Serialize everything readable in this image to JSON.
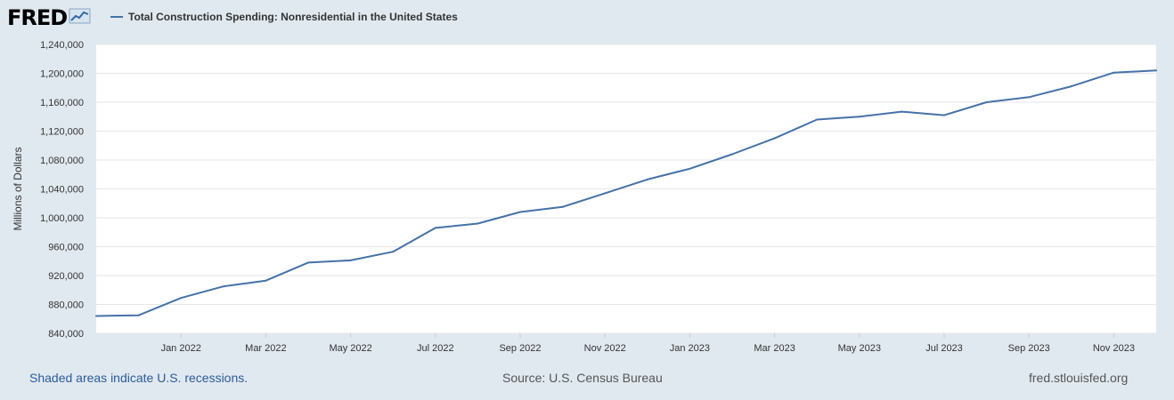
{
  "header": {
    "logo_text": "FRED",
    "logo_icon": "chart-trend-icon",
    "legend_label": "Total Construction Spending: Nonresidential in the United States"
  },
  "colors": {
    "background": "#e1e9f0",
    "plot_background": "#ffffff",
    "series": "#4572a7",
    "gridline": "#e6e6e6",
    "link": "#2a5b9a"
  },
  "footer": {
    "recession_note": "Shaded areas indicate U.S. recessions.",
    "source": "Source: U.S. Census Bureau",
    "site": "fred.stlouisfed.org"
  },
  "chart_data": {
    "type": "line",
    "title": "",
    "ylabel": "Millions of Dollars",
    "xlabel": "",
    "ylim": [
      840000,
      1240000
    ],
    "yticks": [
      840000,
      880000,
      920000,
      960000,
      1000000,
      1040000,
      1080000,
      1120000,
      1160000,
      1200000,
      1240000
    ],
    "ytick_labels": [
      "840,000",
      "880,000",
      "920,000",
      "960,000",
      "1,000,000",
      "1,040,000",
      "1,080,000",
      "1,120,000",
      "1,160,000",
      "1,200,000",
      "1,240,000"
    ],
    "xlim": [
      "2021-11",
      "2023-12"
    ],
    "xticks": [
      "2022-01",
      "2022-03",
      "2022-05",
      "2022-07",
      "2022-09",
      "2022-11",
      "2023-01",
      "2023-03",
      "2023-05",
      "2023-07",
      "2023-09",
      "2023-11"
    ],
    "xtick_labels": [
      "Jan 2022",
      "Mar 2022",
      "May 2022",
      "Jul 2022",
      "Sep 2022",
      "Nov 2022",
      "Jan 2023",
      "Mar 2023",
      "May 2023",
      "Jul 2023",
      "Sep 2023",
      "Nov 2023"
    ],
    "grid": true,
    "series": [
      {
        "name": "Total Construction Spending: Nonresidential in the United States",
        "x": [
          "2021-11",
          "2021-12",
          "2022-01",
          "2022-02",
          "2022-03",
          "2022-04",
          "2022-05",
          "2022-06",
          "2022-07",
          "2022-08",
          "2022-09",
          "2022-10",
          "2022-11",
          "2022-12",
          "2023-01",
          "2023-02",
          "2023-03",
          "2023-04",
          "2023-05",
          "2023-06",
          "2023-07",
          "2023-08",
          "2023-09",
          "2023-10",
          "2023-11",
          "2023-12"
        ],
        "values": [
          864000,
          865000,
          889000,
          905000,
          913000,
          938000,
          941000,
          953000,
          986000,
          992000,
          1008000,
          1015000,
          1034000,
          1053000,
          1068000,
          1088000,
          1110000,
          1136000,
          1140000,
          1147000,
          1142000,
          1160000,
          1167000,
          1182000,
          1201000,
          1204000
        ]
      }
    ]
  }
}
